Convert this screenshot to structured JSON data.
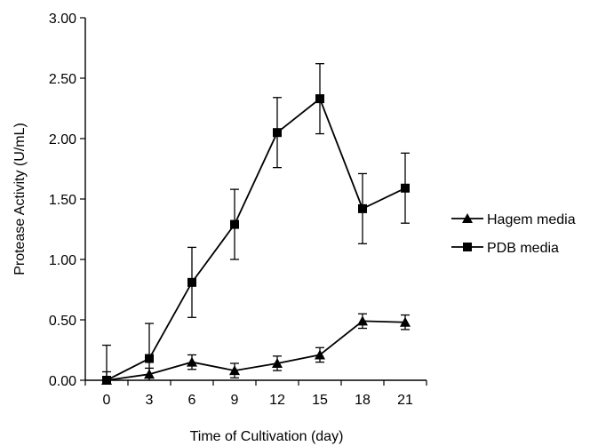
{
  "chart_data": {
    "type": "line",
    "title": "",
    "xlabel": "Time of Cultivation (day)",
    "ylabel": "Protease  Activity (U/mL)",
    "x_ticks": [
      "0",
      "3",
      "6",
      "9",
      "12",
      "15",
      "18",
      "21"
    ],
    "y_ticks": [
      "0.00",
      "0.50",
      "1.00",
      "1.50",
      "2.00",
      "2.50",
      "3.00"
    ],
    "ylim": [
      0,
      3
    ],
    "legend_position": "right",
    "series": [
      {
        "name": "Hagem media",
        "marker": "triangle",
        "x": [
          0,
          3,
          6,
          9,
          12,
          15,
          18,
          21
        ],
        "values": [
          0.0,
          0.05,
          0.15,
          0.08,
          0.14,
          0.21,
          0.49,
          0.48
        ],
        "error": [
          0.07,
          0.05,
          0.06,
          0.06,
          0.06,
          0.06,
          0.06,
          0.06
        ]
      },
      {
        "name": "PDB media",
        "marker": "square",
        "x": [
          0,
          3,
          6,
          9,
          12,
          15,
          18,
          21
        ],
        "values": [
          0.0,
          0.18,
          0.81,
          1.29,
          2.05,
          2.33,
          1.42,
          1.59
        ],
        "error": [
          0.29,
          0.29,
          0.29,
          0.29,
          0.29,
          0.29,
          0.29,
          0.29
        ]
      }
    ]
  }
}
